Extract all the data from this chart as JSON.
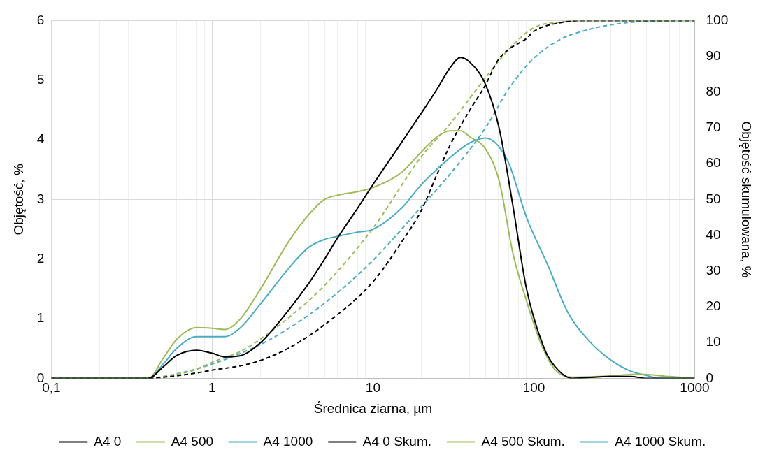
{
  "chart_data": {
    "type": "line",
    "xlabel": "Średnica ziarna, µm",
    "ylabel": "Objętość, %",
    "y2label": "Objętość skumulowana, %",
    "log": "x",
    "grid": true,
    "legend": "bottom",
    "marker": "none",
    "xlim": [
      0.1,
      1000
    ],
    "xticks": [
      {
        "value": 0.1,
        "label": "0,1"
      },
      {
        "value": 0.2,
        "label": null
      },
      {
        "value": 0.3,
        "label": null
      },
      {
        "value": 0.4,
        "label": null
      },
      {
        "value": 0.5,
        "label": null
      },
      {
        "value": 0.6,
        "label": null
      },
      {
        "value": 0.7,
        "label": null
      },
      {
        "value": 0.8,
        "label": null
      },
      {
        "value": 0.9,
        "label": null
      },
      1,
      {
        "value": 2,
        "label": null
      },
      {
        "value": 3,
        "label": null
      },
      {
        "value": 4,
        "label": null
      },
      {
        "value": 5,
        "label": null
      },
      {
        "value": 6,
        "label": null
      },
      {
        "value": 7,
        "label": null
      },
      {
        "value": 8,
        "label": null
      },
      {
        "value": 9,
        "label": null
      },
      10,
      {
        "value": 20,
        "label": null
      },
      {
        "value": 30,
        "label": null
      },
      {
        "value": 40,
        "label": null
      },
      {
        "value": 50,
        "label": null
      },
      {
        "value": 60,
        "label": null
      },
      {
        "value": 70,
        "label": null
      },
      {
        "value": 80,
        "label": null
      },
      {
        "value": 90,
        "label": null
      },
      100,
      {
        "value": 200,
        "label": null
      },
      {
        "value": 300,
        "label": null
      },
      {
        "value": 400,
        "label": null
      },
      {
        "value": 500,
        "label": null
      },
      {
        "value": 600,
        "label": null
      },
      {
        "value": 700,
        "label": null
      },
      {
        "value": 800,
        "label": null
      },
      {
        "value": 900,
        "label": null
      },
      1000
    ],
    "ylim": [
      0,
      6
    ],
    "yticks": [
      0,
      1,
      2,
      3,
      4,
      5,
      6
    ],
    "y2lim": [
      0,
      100
    ],
    "y2ticks": [
      0,
      10,
      20,
      30,
      40,
      50,
      60,
      70,
      80,
      90,
      100
    ],
    "series": [
      {
        "name": "A4 0",
        "color": "#000000",
        "line_style": "solid",
        "x": [
          0.1,
          0.4,
          0.5,
          0.6,
          0.8,
          1,
          1.2,
          1.5,
          2,
          3,
          4,
          5,
          6,
          8,
          10,
          15,
          20,
          25,
          30,
          35,
          40,
          50,
          61,
          74,
          90,
          116,
          135,
          173,
          300,
          400,
          500,
          1000
        ],
        "values": [
          0,
          0,
          0.2,
          0.38,
          0.47,
          0.42,
          0.36,
          0.38,
          0.6,
          1.15,
          1.6,
          2,
          2.35,
          2.85,
          3.25,
          3.95,
          4.45,
          4.85,
          5.2,
          5.38,
          5.3,
          4.93,
          4.18,
          2.9,
          1.5,
          0.5,
          0.2,
          0,
          0.03,
          0.03,
          0,
          0
        ]
      },
      {
        "name": "A4 500",
        "color": "#9bbb59",
        "line_style": "solid",
        "x": [
          0.1,
          0.4,
          0.5,
          0.6,
          0.8,
          1,
          1.2,
          1.5,
          2,
          3,
          4,
          5,
          6,
          8,
          10,
          15,
          20,
          25,
          30,
          35,
          40,
          50,
          61,
          74,
          90,
          110,
          135,
          173,
          300,
          450,
          700,
          1000
        ],
        "values": [
          0,
          0,
          0.35,
          0.65,
          0.85,
          0.84,
          0.82,
          1,
          1.5,
          2.3,
          2.75,
          3,
          3.07,
          3.13,
          3.2,
          3.45,
          3.8,
          4.05,
          4.15,
          4.15,
          4.05,
          3.85,
          3.3,
          2.1,
          1.3,
          0.6,
          0.15,
          0.02,
          0.04,
          0.07,
          0.03,
          0
        ]
      },
      {
        "name": "A4 1000",
        "color": "#4bacc6",
        "line_style": "solid",
        "x": [
          0.1,
          0.4,
          0.5,
          0.6,
          0.8,
          1,
          1.2,
          1.5,
          2,
          3,
          4,
          5,
          6,
          8,
          10,
          15,
          20,
          30,
          40,
          50,
          60,
          70,
          90,
          122,
          163,
          220,
          296,
          400,
          500,
          600,
          1000
        ],
        "values": [
          0,
          0,
          0.25,
          0.5,
          0.7,
          0.7,
          0.7,
          0.85,
          1.25,
          1.85,
          2.2,
          2.33,
          2.38,
          2.45,
          2.5,
          2.85,
          3.25,
          3.7,
          3.95,
          4.03,
          3.9,
          3.6,
          2.7,
          1.9,
          1.1,
          0.63,
          0.32,
          0.12,
          0.05,
          0,
          0
        ]
      },
      {
        "name": "A4 0 Skum.",
        "color": "#000000",
        "line_style": "dashed",
        "axis": "y2",
        "x": [
          0.1,
          0.4,
          0.5,
          0.8,
          1,
          1.5,
          2,
          3,
          5,
          10,
          15,
          20,
          25,
          30,
          40,
          50,
          60,
          70,
          90,
          100,
          150,
          200,
          1000
        ],
        "values": [
          0,
          0,
          0.3,
          1.5,
          2.3,
          3.5,
          5,
          8.5,
          15,
          27,
          38,
          47,
          57,
          65,
          75,
          82,
          89,
          92,
          95,
          97,
          99.5,
          100,
          100
        ]
      },
      {
        "name": "A4 500 Skum.",
        "color": "#9bbb59",
        "line_style": "dashed",
        "axis": "y2",
        "x": [
          0.1,
          0.4,
          0.5,
          0.8,
          1,
          1.5,
          2,
          3,
          5,
          10,
          20,
          30,
          50,
          70,
          100,
          150,
          200,
          1000
        ],
        "values": [
          0,
          0,
          0.5,
          2.5,
          4.5,
          7.5,
          11,
          17,
          26,
          42,
          62,
          71,
          84,
          92,
          98,
          99.6,
          100,
          100
        ]
      },
      {
        "name": "A4 1000 Skum.",
        "color": "#4bacc6",
        "line_style": "dashed",
        "axis": "y2",
        "x": [
          0.1,
          0.4,
          0.5,
          1,
          2,
          3,
          5,
          10,
          20,
          30,
          50,
          70,
          100,
          150,
          200,
          300,
          500,
          1000
        ],
        "values": [
          0,
          0,
          0.5,
          4,
          9.5,
          14,
          21,
          33,
          48,
          57,
          70,
          81,
          89.5,
          95,
          97,
          98.8,
          99.8,
          100
        ]
      }
    ]
  }
}
